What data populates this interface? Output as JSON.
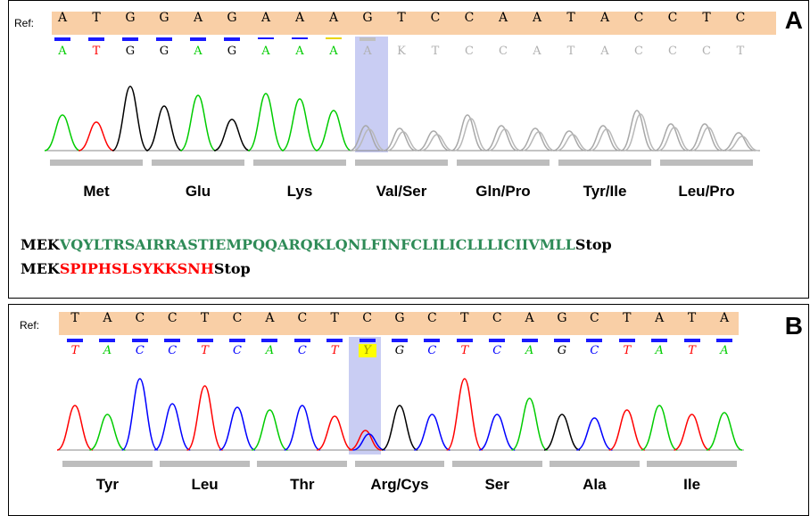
{
  "panels": [
    {
      "id": "A",
      "label": "A",
      "ref_label": "Ref:",
      "ref_bases": [
        "A",
        "T",
        "G",
        "G",
        "A",
        "G",
        "A",
        "A",
        "A",
        "G",
        "T",
        "C",
        "C",
        "A",
        "A",
        "T",
        "A",
        "C",
        "C",
        "T",
        "C"
      ],
      "called_bases": [
        "A",
        "T",
        "G",
        "G",
        "A",
        "G",
        "A",
        "A",
        "A",
        "A",
        "K",
        "T",
        "C",
        "C",
        "A",
        "T",
        "A",
        "C",
        "C",
        "C",
        "T"
      ],
      "codons": [
        "Met",
        "Glu",
        "Lys",
        "Val/Ser",
        "Gln/Pro",
        "Tyr/Ile",
        "Leu/Pro"
      ],
      "sequence_1": {
        "prefix": "MEK",
        "mutant": "VQYLTRSAIRRASTIEMPQQARQKLQNLFINFCLILICLLLICIIVMLL",
        "suffix": "Stop"
      },
      "sequence_2": {
        "prefix": "MEK",
        "mutant": "SPIPHSLSYKKSNH",
        "suffix": "Stop"
      },
      "colors": {
        "A": "#00cc00",
        "T": "#ff0000",
        "G": "#000000",
        "C": "#0000ff",
        "faded": "#b0b0b0",
        "mutant_seq_1": "#2e8b57",
        "mutant_seq_2": "#ff0000"
      }
    },
    {
      "id": "B",
      "label": "B",
      "ref_label": "Ref:",
      "ref_bases": [
        "T",
        "A",
        "C",
        "C",
        "T",
        "C",
        "A",
        "C",
        "T",
        "C",
        "G",
        "C",
        "T",
        "C",
        "A",
        "G",
        "C",
        "T",
        "A",
        "T",
        "A"
      ],
      "called_bases": [
        "T",
        "A",
        "C",
        "C",
        "T",
        "C",
        "A",
        "C",
        "T",
        "Y",
        "G",
        "C",
        "T",
        "C",
        "A",
        "G",
        "C",
        "T",
        "A",
        "T",
        "A"
      ],
      "codons": [
        "Tyr",
        "Leu",
        "Thr",
        "Arg/Cys",
        "Ser",
        "Ala",
        "Ile"
      ]
    }
  ]
}
